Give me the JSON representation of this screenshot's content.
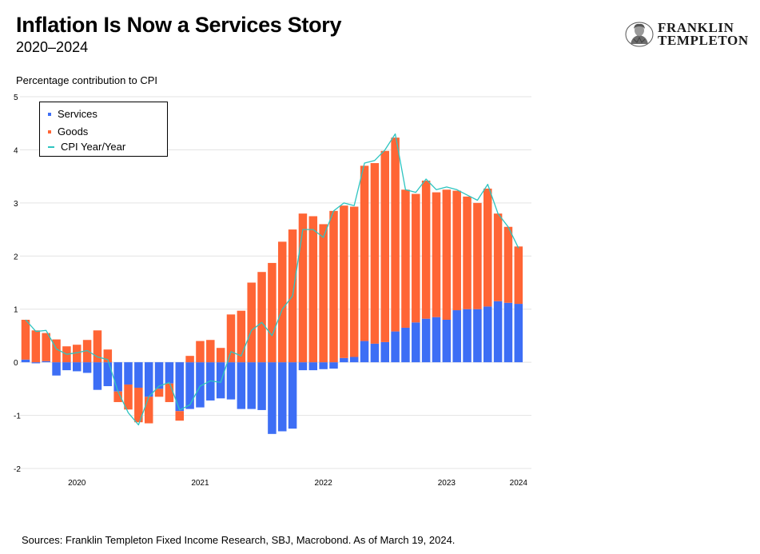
{
  "header": {
    "title": "Inflation Is Now a Services Story",
    "subtitle": "2020–2024"
  },
  "logo": {
    "line1": "FRANKLIN",
    "line2": "TEMPLETON"
  },
  "footer": {
    "source": "Sources: Franklin Templeton Fixed Income Research, SBJ, Macrobond. As of March 19, 2024."
  },
  "colors": {
    "services": "#3d6ef5",
    "goods": "#ff6535",
    "cpi": "#2ec4c0",
    "grid": "#e3e3e3"
  },
  "chart_data": {
    "type": "bar",
    "stacked": true,
    "ylabel": "Percentage contribution to CPI",
    "ylim": [
      -2,
      5
    ],
    "yticks": [
      -2,
      -1,
      0,
      1,
      2,
      3,
      4,
      5
    ],
    "xtick_labels": [
      {
        "label": "2020",
        "month_index": 5
      },
      {
        "label": "2021",
        "month_index": 17
      },
      {
        "label": "2022",
        "month_index": 29
      },
      {
        "label": "2023",
        "month_index": 41
      },
      {
        "label": "2024",
        "month_index": 48
      }
    ],
    "grid": true,
    "legend_position": "top-left",
    "series": [
      {
        "name": "Services",
        "kind": "bar",
        "values": [
          0.05,
          -0.02,
          0.02,
          -0.25,
          -0.15,
          -0.17,
          -0.2,
          -0.52,
          -0.45,
          -0.55,
          -0.42,
          -0.48,
          -0.65,
          -0.5,
          -0.4,
          -0.92,
          -0.88,
          -0.85,
          -0.72,
          -0.68,
          -0.7,
          -0.88,
          -0.88,
          -0.9,
          -1.35,
          -1.3,
          -1.25,
          -0.15,
          -0.15,
          -0.13,
          -0.12,
          0.08,
          0.1,
          0.4,
          0.35,
          0.38,
          0.58,
          0.65,
          0.75,
          0.82,
          0.85,
          0.8,
          0.98,
          1.0,
          1.0,
          1.05,
          1.15,
          1.12,
          1.1
        ]
      },
      {
        "name": "Goods",
        "kind": "bar",
        "values": [
          0.75,
          0.6,
          0.53,
          0.43,
          0.3,
          0.33,
          0.42,
          0.6,
          0.24,
          -0.2,
          -0.47,
          -0.65,
          -0.5,
          -0.15,
          -0.35,
          -0.18,
          0.12,
          0.4,
          0.42,
          0.27,
          0.9,
          0.97,
          1.5,
          1.7,
          1.87,
          2.27,
          2.5,
          2.8,
          2.75,
          2.6,
          2.85,
          2.87,
          2.83,
          3.3,
          3.4,
          3.6,
          3.65,
          2.6,
          2.42,
          2.6,
          2.35,
          2.45,
          2.25,
          2.12,
          2.0,
          2.22,
          1.65,
          1.43,
          1.08
        ]
      },
      {
        "name": "CPI Year/Year",
        "kind": "line",
        "values": [
          0.8,
          0.58,
          0.6,
          0.25,
          0.15,
          0.18,
          0.22,
          0.1,
          0.05,
          -0.55,
          -0.95,
          -1.18,
          -0.65,
          -0.45,
          -0.38,
          -0.9,
          -0.8,
          -0.45,
          -0.35,
          -0.38,
          0.2,
          0.12,
          0.6,
          0.75,
          0.5,
          1.0,
          1.25,
          2.5,
          2.5,
          2.35,
          2.85,
          3.0,
          2.95,
          3.75,
          3.8,
          4.0,
          4.3,
          3.25,
          3.2,
          3.45,
          3.25,
          3.3,
          3.25,
          3.15,
          3.05,
          3.35,
          2.8,
          2.55,
          2.15
        ]
      }
    ]
  }
}
